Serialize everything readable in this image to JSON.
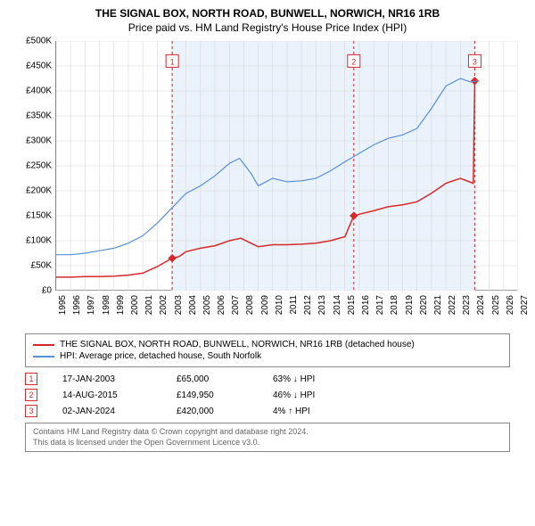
{
  "title": "THE SIGNAL BOX, NORTH ROAD, BUNWELL, NORWICH, NR16 1RB",
  "subtitle": "Price paid vs. HM Land Registry's House Price Index (HPI)",
  "chart": {
    "type": "line",
    "background_color": "#ffffff",
    "grid_color": "#d8d8d8",
    "highlight_band_color": "#eaf2fb",
    "axis_color": "#888888",
    "title_fontsize": 12,
    "label_fontsize": 10,
    "x_range": [
      1995,
      2027
    ],
    "y_range": [
      0,
      500000
    ],
    "y_ticks": [
      0,
      50000,
      100000,
      150000,
      200000,
      250000,
      300000,
      350000,
      400000,
      450000,
      500000
    ],
    "y_tick_labels": [
      "£0",
      "£50K",
      "£100K",
      "£150K",
      "£200K",
      "£250K",
      "£300K",
      "£350K",
      "£400K",
      "£450K",
      "£500K"
    ],
    "x_ticks": [
      1995,
      1996,
      1997,
      1998,
      1999,
      2000,
      2001,
      2002,
      2003,
      2004,
      2005,
      2006,
      2007,
      2008,
      2009,
      2010,
      2011,
      2012,
      2013,
      2014,
      2015,
      2016,
      2017,
      2018,
      2019,
      2020,
      2021,
      2022,
      2023,
      2024,
      2025,
      2026,
      2027
    ],
    "highlight_band_x": [
      2003.04,
      2024.0
    ],
    "series": [
      {
        "name": "property",
        "color": "#d62a2a",
        "line_width": 1.5,
        "data": [
          [
            1995,
            27000
          ],
          [
            1996,
            27000
          ],
          [
            1997,
            28000
          ],
          [
            1998,
            28000
          ],
          [
            1999,
            29000
          ],
          [
            2000,
            31000
          ],
          [
            2001,
            35000
          ],
          [
            2002,
            48000
          ],
          [
            2003.04,
            65000
          ],
          [
            2003.5,
            68000
          ],
          [
            2004,
            78000
          ],
          [
            2005,
            85000
          ],
          [
            2006,
            90000
          ],
          [
            2007,
            100000
          ],
          [
            2007.8,
            105000
          ],
          [
            2008.5,
            95000
          ],
          [
            2009,
            88000
          ],
          [
            2010,
            92000
          ],
          [
            2011,
            92000
          ],
          [
            2012,
            93000
          ],
          [
            2013,
            95000
          ],
          [
            2014,
            100000
          ],
          [
            2015,
            108000
          ],
          [
            2015.62,
            149950
          ],
          [
            2016,
            153000
          ],
          [
            2017,
            160000
          ],
          [
            2018,
            168000
          ],
          [
            2019,
            172000
          ],
          [
            2020,
            178000
          ],
          [
            2021,
            195000
          ],
          [
            2022,
            215000
          ],
          [
            2023,
            225000
          ],
          [
            2023.9,
            215000
          ],
          [
            2024.0,
            420000
          ],
          [
            2024.2,
            420000
          ]
        ],
        "markers": [
          {
            "x": 2003.04,
            "y": 65000
          },
          {
            "x": 2015.62,
            "y": 149950
          },
          {
            "x": 2024.0,
            "y": 420000
          }
        ]
      },
      {
        "name": "hpi",
        "color": "#5a8fd6",
        "line_width": 1.2,
        "data": [
          [
            1995,
            72000
          ],
          [
            1996,
            72000
          ],
          [
            1997,
            75000
          ],
          [
            1998,
            80000
          ],
          [
            1999,
            85000
          ],
          [
            2000,
            95000
          ],
          [
            2001,
            110000
          ],
          [
            2002,
            135000
          ],
          [
            2003,
            165000
          ],
          [
            2004,
            195000
          ],
          [
            2005,
            210000
          ],
          [
            2006,
            230000
          ],
          [
            2007,
            255000
          ],
          [
            2007.7,
            265000
          ],
          [
            2008.5,
            235000
          ],
          [
            2009,
            210000
          ],
          [
            2010,
            225000
          ],
          [
            2011,
            218000
          ],
          [
            2012,
            220000
          ],
          [
            2013,
            225000
          ],
          [
            2014,
            240000
          ],
          [
            2015,
            258000
          ],
          [
            2016,
            275000
          ],
          [
            2017,
            292000
          ],
          [
            2018,
            305000
          ],
          [
            2019,
            312000
          ],
          [
            2020,
            325000
          ],
          [
            2021,
            365000
          ],
          [
            2022,
            410000
          ],
          [
            2023,
            425000
          ],
          [
            2023.7,
            418000
          ],
          [
            2024.2,
            420000
          ]
        ]
      }
    ],
    "event_lines": [
      {
        "x": 2003.04,
        "color": "#d62a2a",
        "label": "1",
        "label_y": 460000
      },
      {
        "x": 2015.62,
        "color": "#d62a2a",
        "label": "2",
        "label_y": 460000
      },
      {
        "x": 2024.0,
        "color": "#d62a2a",
        "label": "3",
        "label_y": 460000
      }
    ]
  },
  "legend": {
    "items": [
      {
        "color": "#d62a2a",
        "label": "THE SIGNAL BOX, NORTH ROAD, BUNWELL, NORWICH, NR16 1RB (detached house)"
      },
      {
        "color": "#5a8fd6",
        "label": "HPI: Average price, detached house, South Norfolk"
      }
    ]
  },
  "marker_rows": [
    {
      "num": "1",
      "date": "17-JAN-2003",
      "price": "£65,000",
      "diff": "63% ↓ HPI",
      "color": "#d62a2a"
    },
    {
      "num": "2",
      "date": "14-AUG-2015",
      "price": "£149,950",
      "diff": "46% ↓ HPI",
      "color": "#d62a2a"
    },
    {
      "num": "3",
      "date": "02-JAN-2024",
      "price": "£420,000",
      "diff": "4% ↑ HPI",
      "color": "#d62a2a"
    }
  ],
  "footer": {
    "line1": "Contains HM Land Registry data © Crown copyright and database right 2024.",
    "line2": "This data is licensed under the Open Government Licence v3.0."
  }
}
